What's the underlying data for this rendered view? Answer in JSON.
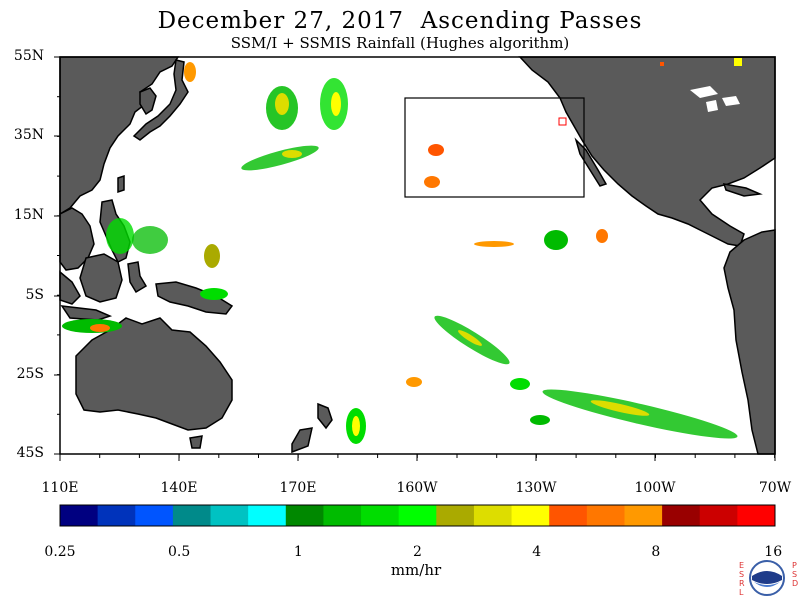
{
  "title": "December 27, 2017  Ascending Passes",
  "subtitle": "SSM/I + SSMIS Rainfall (Hughes algorithm)",
  "lat_labels": [
    "55N",
    "35N",
    "15N",
    "5S",
    "25S",
    "45S"
  ],
  "lon_labels": [
    "110E",
    "140E",
    "170E",
    "160W",
    "130W",
    "100W",
    "70W"
  ],
  "colorbar": {
    "colors": [
      "#000080",
      "#0033bb",
      "#0055ff",
      "#008a8a",
      "#00c2c2",
      "#00ffff",
      "#008800",
      "#00bb00",
      "#00dd00",
      "#00ff00",
      "#aaaa00",
      "#dddd00",
      "#ffff00",
      "#ff5500",
      "#ff7700",
      "#ff9900",
      "#990000",
      "#cc0000",
      "#ff0000"
    ],
    "labels": [
      "0.25",
      "0.5",
      "1",
      "2",
      "4",
      "8",
      "16"
    ],
    "units": "mm/hr"
  },
  "colors": {
    "land": "#5a5a5a",
    "ocean": "#ffffff",
    "frame": "#000000"
  },
  "logo": {
    "name": "noaa-logo",
    "left_letters": "ESRL",
    "right_letters": "PSD"
  }
}
